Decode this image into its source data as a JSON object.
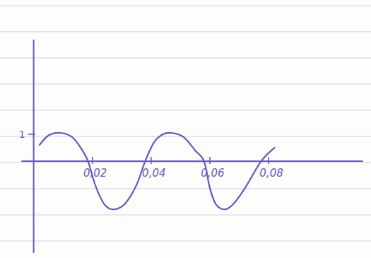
{
  "chart_data": {
    "type": "line",
    "x": [
      0.002,
      0.005,
      0.009,
      0.013,
      0.016,
      0.0185,
      0.021,
      0.024,
      0.027,
      0.031,
      0.035,
      0.038,
      0.041,
      0.044,
      0.047,
      0.051,
      0.055,
      0.058,
      0.06,
      0.062,
      0.065,
      0.068,
      0.072,
      0.0775,
      0.082
    ],
    "values": [
      0.6,
      0.95,
      1.05,
      0.9,
      0.5,
      0,
      -0.9,
      -1.6,
      -1.8,
      -1.6,
      -0.9,
      0,
      0.7,
      1.0,
      1.05,
      0.9,
      0.4,
      0,
      -1.0,
      -1.6,
      -1.8,
      -1.6,
      -1.0,
      0,
      0.5
    ],
    "color": "#6b55c0",
    "xlim": [
      -0.004,
      0.112
    ],
    "ylim": [
      -3.4,
      4.5
    ],
    "xticks": [
      {
        "value": 0.02,
        "label": "0,02"
      },
      {
        "value": 0.04,
        "label": "0,04"
      },
      {
        "value": 0.06,
        "label": "0,06"
      },
      {
        "value": 0.08,
        "label": "0,08"
      }
    ],
    "yticks": [
      1
    ],
    "grid": false
  }
}
